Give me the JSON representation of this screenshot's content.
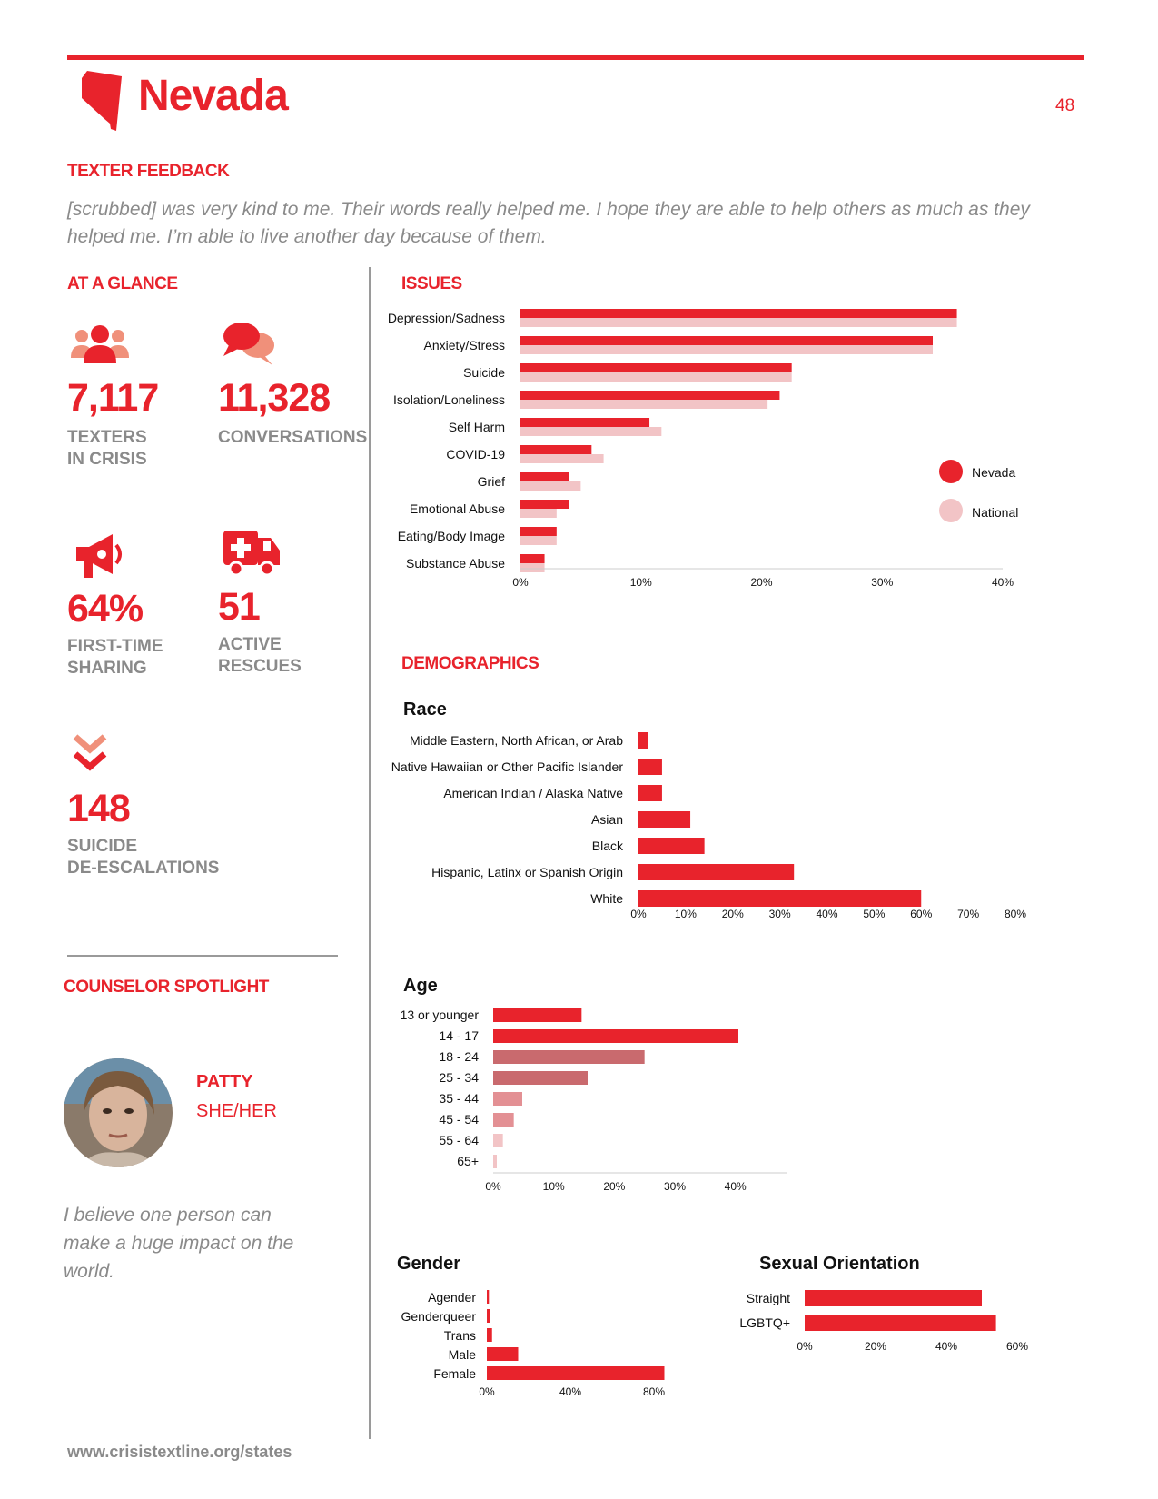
{
  "header": {
    "state": "Nevada",
    "page_number": "48"
  },
  "feedback": {
    "heading": "TEXTER FEEDBACK",
    "quote_line1": "[scrubbed] was very kind to me. Their words really helped me. I hope they are able to help others as much as they",
    "quote_line2": "helped me. I’m able to live another day because of them."
  },
  "glance": {
    "heading": "AT A GLANCE",
    "texters": {
      "value": "7,117",
      "label1": "TEXTERS",
      "label2": "IN CRISIS",
      "icon": "people-icon"
    },
    "conversations": {
      "value": "11,328",
      "label1": "CONVERSATIONS",
      "icon": "chat-bubbles-icon"
    },
    "first_time": {
      "value": "64%",
      "label1": "FIRST-TIME",
      "label2": "SHARING",
      "icon": "megaphone-icon"
    },
    "rescues": {
      "value": "51",
      "label1": "ACTIVE",
      "label2": "RESCUES",
      "icon": "ambulance-icon"
    },
    "deescalations": {
      "value": "148",
      "label1": "SUICIDE",
      "label2": "DE-ESCALATIONS",
      "icon": "chevrons-down-icon"
    }
  },
  "spotlight": {
    "heading": "COUNSELOR SPOTLIGHT",
    "name": "PATTY",
    "pronouns": "SHE/HER",
    "quote_line1": "I believe one person can",
    "quote_line2": "make a huge impact on the",
    "quote_line3": "world."
  },
  "issues_heading": "ISSUES",
  "demographics_heading": "DEMOGRAPHICS",
  "footer": {
    "url": "www.crisistextline.org/states"
  },
  "colors": {
    "accent": "#e8232c",
    "national": "#f2c4c6",
    "gray": "#8a8a8a"
  },
  "chart_data": [
    {
      "id": "issues",
      "type": "bar",
      "orientation": "horizontal",
      "categories": [
        "Depression/Sadness",
        "Anxiety/Stress",
        "Suicide",
        "Isolation/Loneliness",
        "Self Harm",
        "COVID-19",
        "Grief",
        "Emotional Abuse",
        "Eating/Body Image",
        "Substance Abuse"
      ],
      "series": [
        {
          "name": "Nevada",
          "color": "#e8232c",
          "values": [
            36.2,
            34.2,
            22.5,
            21.5,
            10.7,
            5.9,
            4.0,
            4.0,
            3.0,
            2.0
          ]
        },
        {
          "name": "National",
          "color": "#f2c4c6",
          "values": [
            36.2,
            34.2,
            22.5,
            20.5,
            11.7,
            6.9,
            5.0,
            3.0,
            3.0,
            2.0
          ]
        }
      ],
      "xticks": [
        "0%",
        "10%",
        "20%",
        "30%",
        "40%"
      ],
      "xlim": [
        0,
        40
      ],
      "legend": "right"
    },
    {
      "id": "race",
      "type": "bar",
      "orientation": "horizontal",
      "title": "Race",
      "categories": [
        "Middle Eastern, North African, or Arab",
        "Native Hawaiian or Other Pacific Islander",
        "American Indian / Alaska Native",
        "Asian",
        "Black",
        "Hispanic, Latinx or Spanish Origin",
        "White"
      ],
      "values": [
        2,
        5,
        5,
        11,
        14,
        33,
        60
      ],
      "xticks": [
        "0%",
        "10%",
        "20%",
        "30%",
        "40%",
        "50%",
        "60%",
        "70%",
        "80%"
      ],
      "xlim": [
        0,
        80
      ]
    },
    {
      "id": "age",
      "type": "bar",
      "orientation": "horizontal",
      "title": "Age",
      "categories": [
        "13 or younger",
        "14 - 17",
        "18 - 24",
        "25 - 34",
        "35 - 44",
        "45 - 54",
        "55 - 64",
        "65+"
      ],
      "values": [
        14.6,
        40.5,
        25,
        15.6,
        4.8,
        3.4,
        1.6,
        0.6
      ],
      "colors": [
        "#e8232c",
        "#e8232c",
        "#c96a6e",
        "#c96a6e",
        "#e39094",
        "#e39094",
        "#f2c4c6",
        "#f2c4c6"
      ],
      "xticks": [
        "0%",
        "10%",
        "20%",
        "30%",
        "40%"
      ],
      "xlim": [
        0,
        45
      ]
    },
    {
      "id": "gender",
      "type": "bar",
      "orientation": "horizontal",
      "title": "Gender",
      "categories": [
        "Agender",
        "Genderqueer",
        "Trans",
        "Male",
        "Female"
      ],
      "values": [
        1,
        1.5,
        2.5,
        15,
        85
      ],
      "xticks": [
        "0%",
        "40%",
        "80%"
      ],
      "xlim": [
        0,
        100
      ]
    },
    {
      "id": "orientation",
      "type": "bar",
      "orientation": "horizontal",
      "title": "Sexual Orientation",
      "categories": [
        "Straight",
        "LGBTQ+"
      ],
      "values": [
        50,
        54
      ],
      "xticks": [
        "0%",
        "20%",
        "40%",
        "60%"
      ],
      "xlim": [
        0,
        60
      ]
    }
  ]
}
